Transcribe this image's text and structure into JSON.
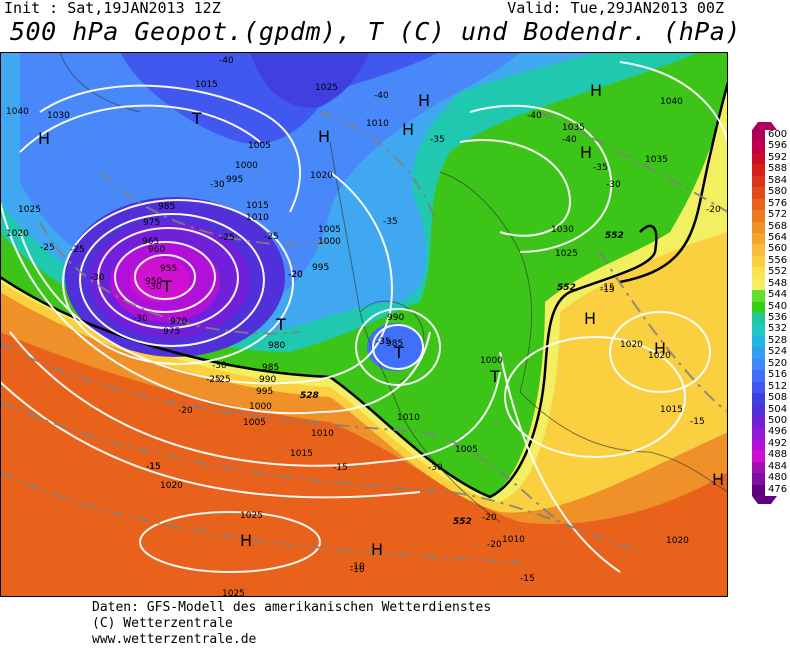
{
  "header": {
    "init": "Init : Sat,19JAN2013 12Z",
    "valid": "Valid: Tue,29JAN2013 00Z",
    "title": "500 hPa Geopot.(gpdm), T (C) und Bodendr. (hPa)"
  },
  "footer": {
    "line1": "Daten: GFS-Modell des amerikanischen Wetterdienstes",
    "line2": "(C) Wetterzentrale",
    "line3": "www.wetterzentrale.de"
  },
  "legend": {
    "labels": [
      "600",
      "596",
      "592",
      "588",
      "584",
      "580",
      "576",
      "572",
      "568",
      "564",
      "560",
      "556",
      "552",
      "548",
      "544",
      "540",
      "536",
      "532",
      "528",
      "524",
      "520",
      "516",
      "512",
      "508",
      "504",
      "500",
      "496",
      "492",
      "488",
      "484",
      "480",
      "476"
    ],
    "colors": [
      "#b0005a",
      "#c0004a",
      "#cc0d28",
      "#d42018",
      "#dc3418",
      "#e24a1a",
      "#e8621c",
      "#ec7a20",
      "#f09028",
      "#f4a630",
      "#f8bc38",
      "#fad040",
      "#fae450",
      "#f2f060",
      "#60e030",
      "#34d018",
      "#20c8a0",
      "#20c8c8",
      "#20b8e0",
      "#30a0f0",
      "#4088f8",
      "#4070f8",
      "#4058f0",
      "#4040e0",
      "#5030d8",
      "#7020d8",
      "#9018d8",
      "#b010d8",
      "#d010d0",
      "#a010b0",
      "#8010a0",
      "#600080"
    ]
  },
  "map": {
    "pressure_labels": [
      "1040",
      "1015",
      "1025",
      "1010",
      "1035",
      "1030",
      "1040",
      "1005",
      "1000",
      "995",
      "1015",
      "1010",
      "1020",
      "1025",
      "1020",
      "985",
      "975",
      "965",
      "955",
      "950",
      "960",
      "970",
      "975",
      "980",
      "985",
      "990",
      "995",
      "1000",
      "1005",
      "1010",
      "990",
      "985",
      "995",
      "1000",
      "1005",
      "1030",
      "1025",
      "1035",
      "1020",
      "1020",
      "1015",
      "1010",
      "1015",
      "1020",
      "1025",
      "1025",
      "1020",
      "1010",
      "1005",
      "1000"
    ],
    "temperature_labels": [
      "-40",
      "-40",
      "-40",
      "-35",
      "-35",
      "-40",
      "-35",
      "-30",
      "-30",
      "-25",
      "-25",
      "-25",
      "-20",
      "-20",
      "-30",
      "-30",
      "-25",
      "-20",
      "-15",
      "-15",
      "-15",
      "-35",
      "-30",
      "-30",
      "-25",
      "-20",
      "-15",
      "-10",
      "-15",
      "-15",
      "-10",
      "-30",
      "-25",
      "-20",
      "-20",
      "-15"
    ],
    "geopotential_labels": [
      "528",
      "552",
      "552",
      "552"
    ],
    "highs_lows": [
      "H",
      "H",
      "H",
      "H",
      "T",
      "T",
      "T",
      "T",
      "H",
      "H",
      "H",
      "H",
      "H",
      "H",
      "T",
      "H"
    ]
  }
}
